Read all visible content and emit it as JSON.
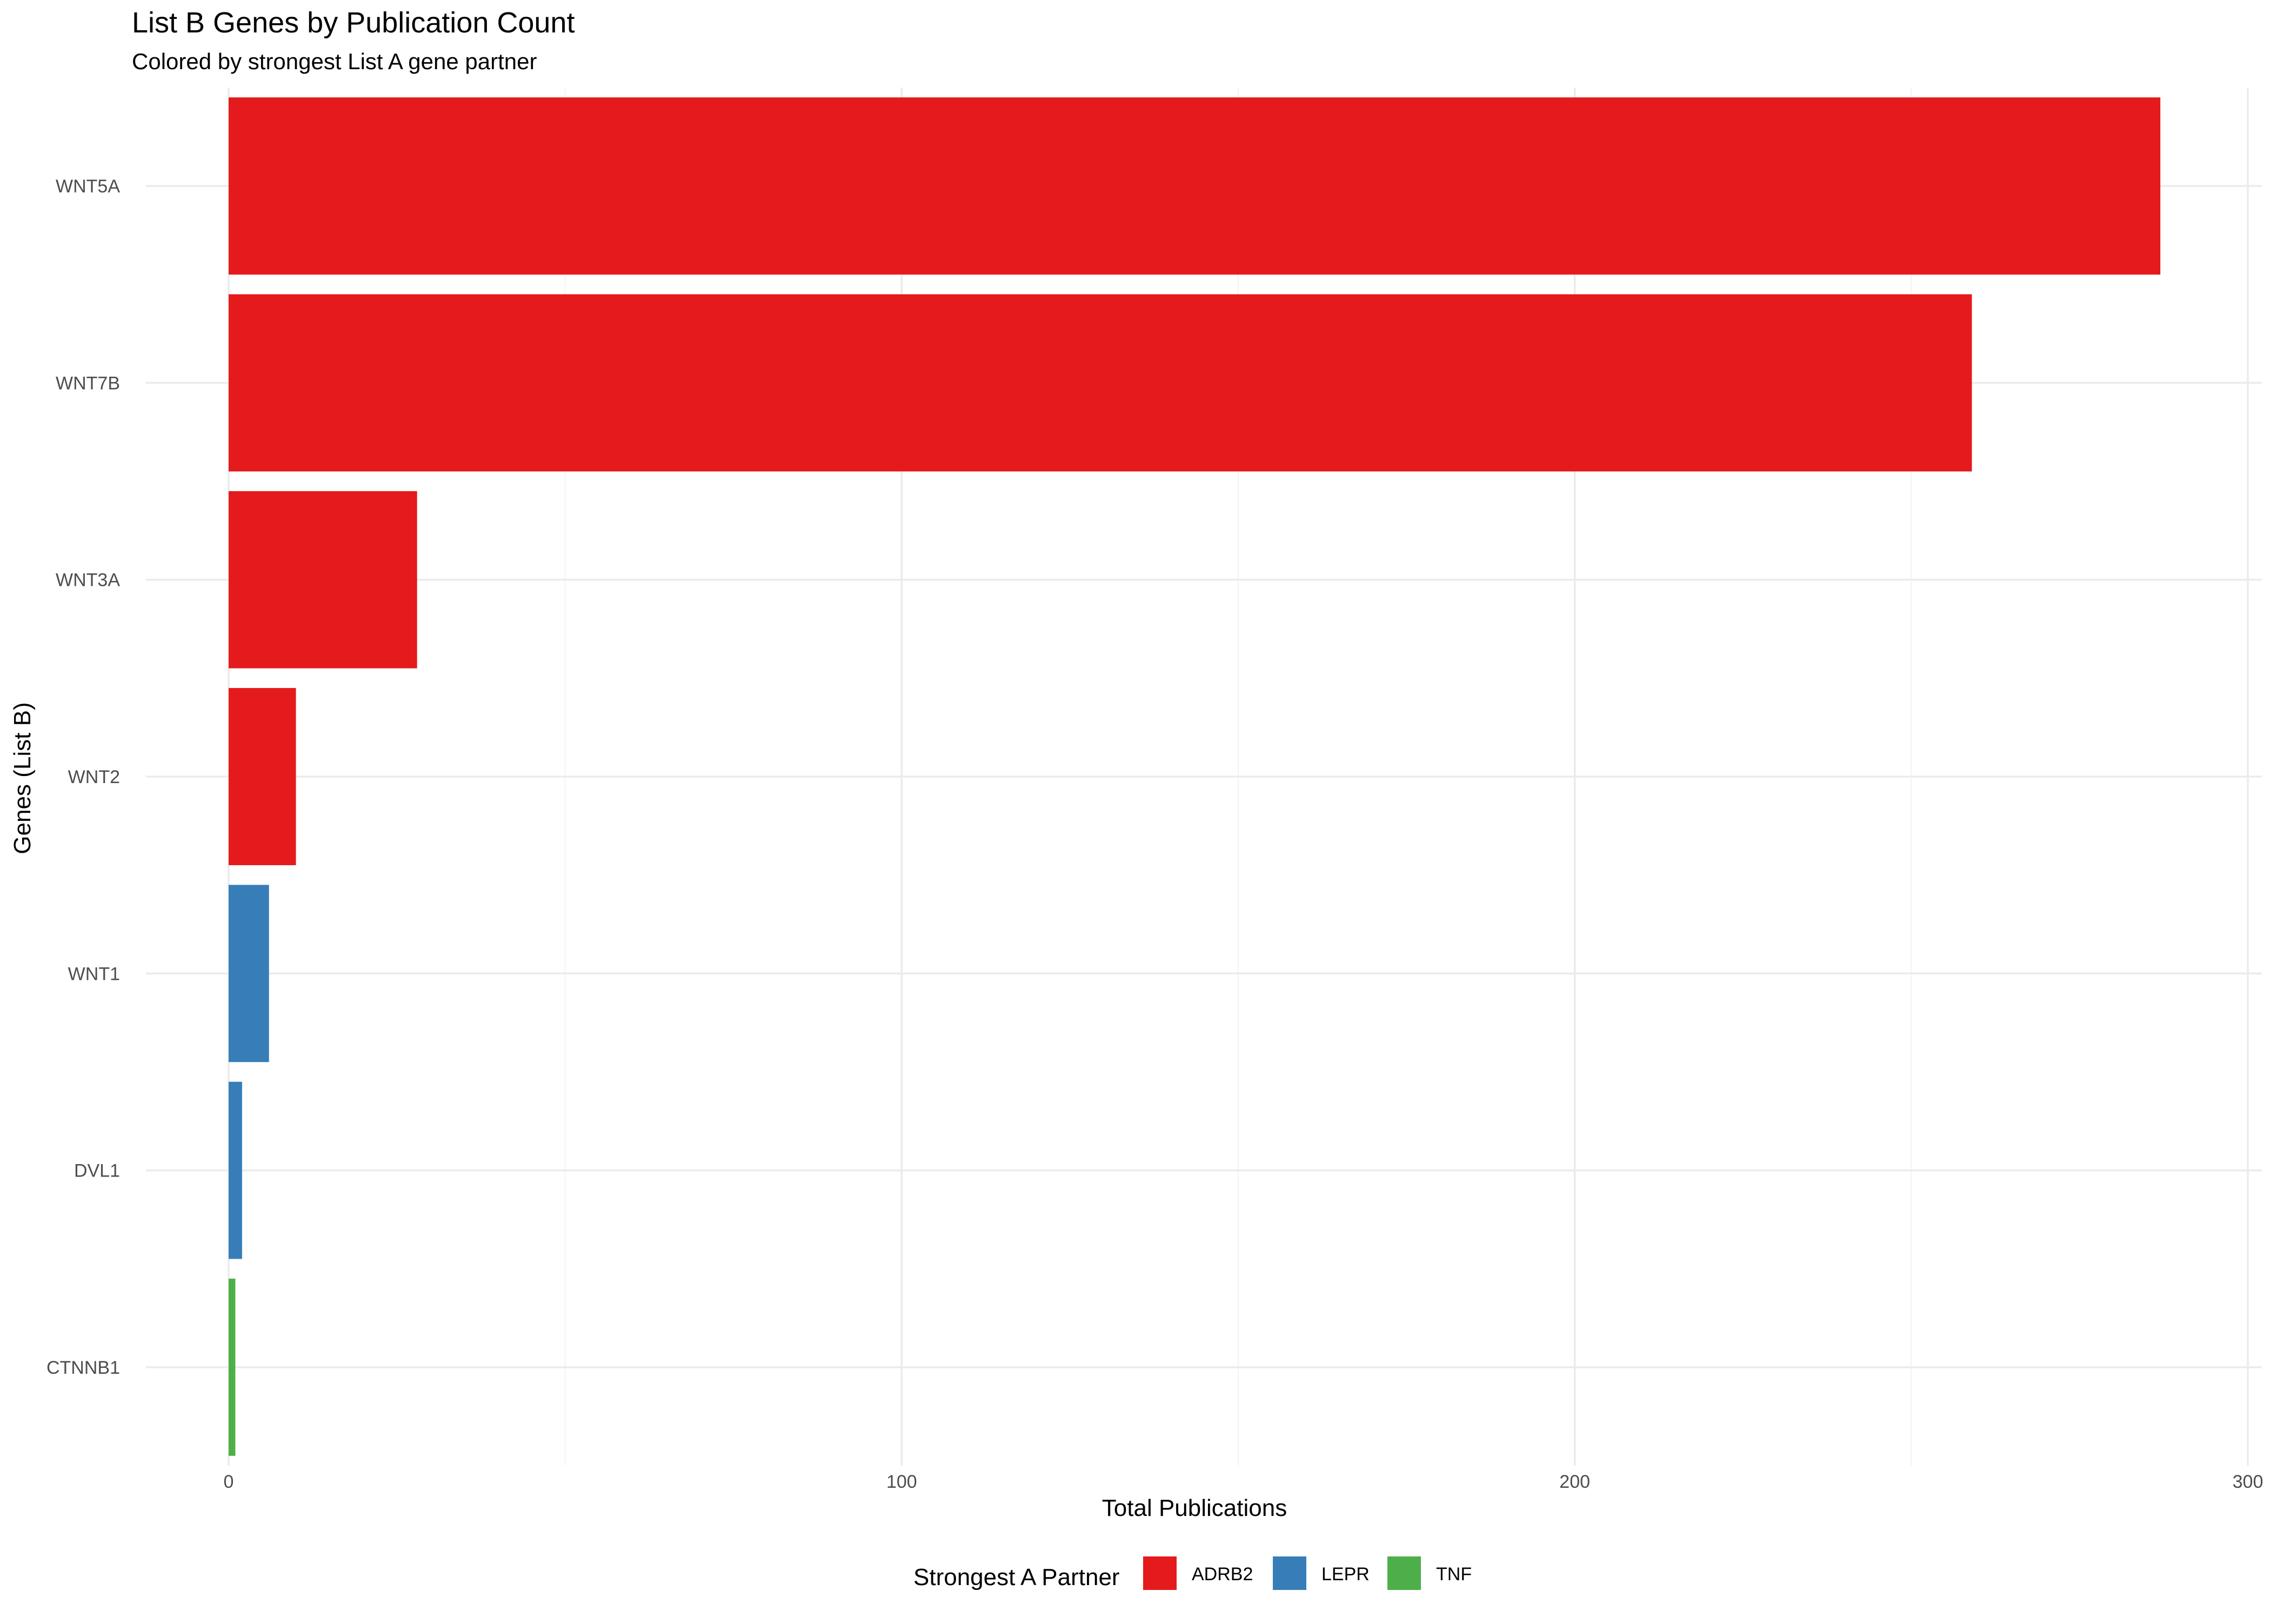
{
  "chart_data": {
    "type": "bar",
    "orientation": "horizontal",
    "title": "List B Genes by Publication Count",
    "subtitle": "Colored by strongest List A gene partner",
    "xlabel": "Total Publications",
    "ylabel": "Genes (List B)",
    "xlim": [
      0,
      300
    ],
    "x_ticks": [
      0,
      100,
      200,
      300
    ],
    "grid": true,
    "legend_position": "bottom",
    "legend_title": "Strongest A Partner",
    "categories": [
      "WNT5A",
      "WNT7B",
      "WNT3A",
      "WNT2",
      "WNT1",
      "DVL1",
      "CTNNB1"
    ],
    "values": [
      287,
      259,
      28,
      10,
      6,
      2,
      1
    ],
    "groups": [
      "ADRB2",
      "ADRB2",
      "ADRB2",
      "ADRB2",
      "LEPR",
      "LEPR",
      "TNF"
    ],
    "legend": [
      {
        "label": "ADRB2",
        "color": "#e41a1c"
      },
      {
        "label": "LEPR",
        "color": "#377eb8"
      },
      {
        "label": "TNF",
        "color": "#4daf4a"
      }
    ]
  }
}
